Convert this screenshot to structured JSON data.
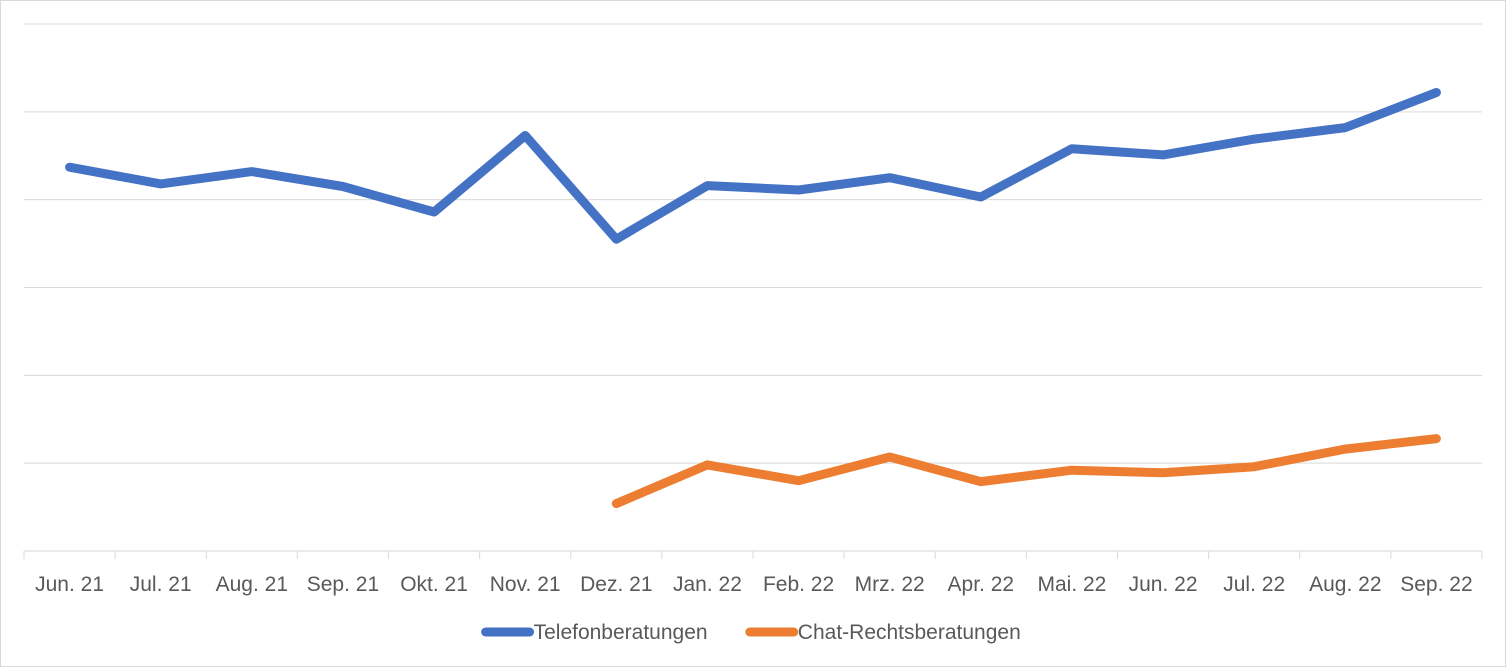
{
  "chart_data": {
    "type": "line",
    "title": "",
    "xlabel": "",
    "ylabel": "",
    "categories": [
      "Jun. 21",
      "Jul. 21",
      "Aug. 21",
      "Sep. 21",
      "Okt. 21",
      "Nov. 21",
      "Dez. 21",
      "Jan. 22",
      "Feb. 22",
      "Mrz. 22",
      "Apr. 22",
      "Mai. 22",
      "Jun. 22",
      "Jul. 22",
      "Aug. 22",
      "Sep. 22"
    ],
    "ylim": [
      0,
      6
    ],
    "grid": true,
    "y_tick_labels_visible": false,
    "legend_position": "bottom",
    "series": [
      {
        "name": "Telefonberatungen",
        "color": "#4472C4",
        "values": [
          4.37,
          4.18,
          4.32,
          4.15,
          3.86,
          4.73,
          3.55,
          4.16,
          4.11,
          4.25,
          4.03,
          4.58,
          4.51,
          4.69,
          4.82,
          5.22
        ]
      },
      {
        "name": "Chat-Rechtsberatungen",
        "color": "#ED7D31",
        "values": [
          null,
          null,
          null,
          null,
          null,
          null,
          0.54,
          0.98,
          0.8,
          1.07,
          0.79,
          0.92,
          0.89,
          0.96,
          1.16,
          1.28
        ]
      }
    ]
  }
}
